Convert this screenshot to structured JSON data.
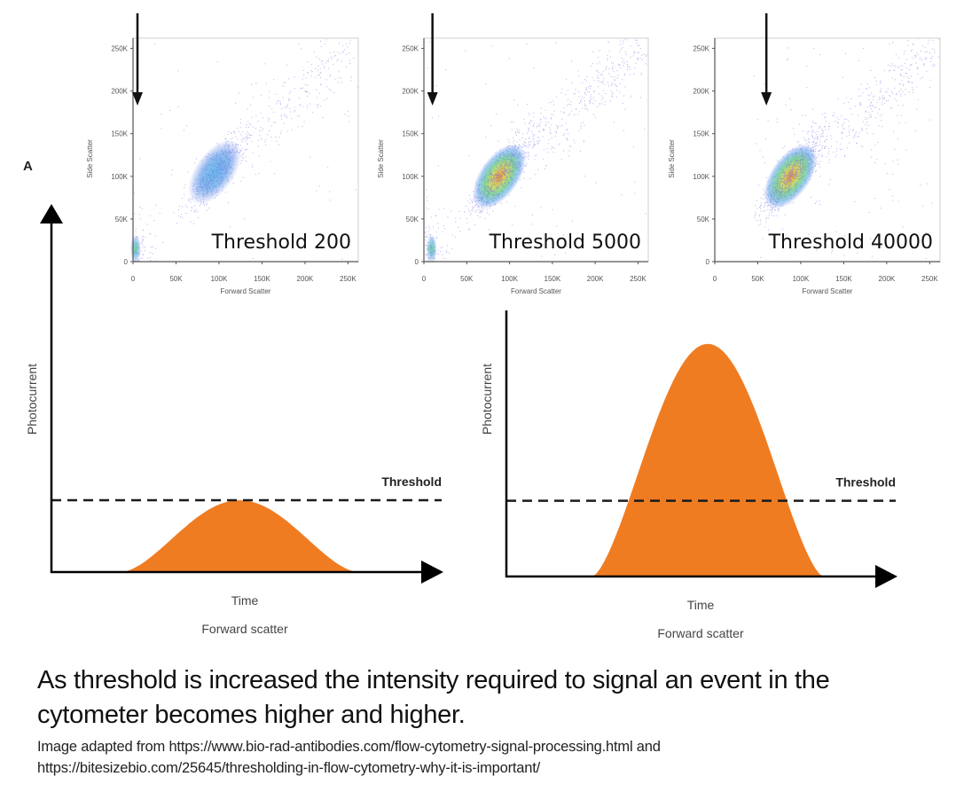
{
  "panel_label": "A",
  "scatter_plots": [
    {
      "id": "t200",
      "label": "Threshold 200",
      "threshold": 200,
      "xlabel": "Forward Scatter",
      "ylabel": "Side Scatter",
      "ticks": [
        "0",
        "50K",
        "100K",
        "150K",
        "200K",
        "250K"
      ],
      "arrow_at_fsc": 0,
      "cluster_fsc": 95000,
      "cluster_ssc": 105000,
      "debris": true,
      "density": "low"
    },
    {
      "id": "t5000",
      "label": "Threshold 5000",
      "threshold": 5000,
      "xlabel": "Forward Scatter",
      "ylabel": "Side Scatter",
      "ticks": [
        "0",
        "50K",
        "100K",
        "150K",
        "200K",
        "250K"
      ],
      "arrow_at_fsc": 10000,
      "cluster_fsc": 88000,
      "cluster_ssc": 100000,
      "debris": true,
      "density": "high"
    },
    {
      "id": "t40000",
      "label": "Threshold 40000",
      "threshold": 40000,
      "xlabel": "Forward Scatter",
      "ylabel": "Side Scatter",
      "ticks": [
        "0",
        "50K",
        "100K",
        "150K",
        "200K",
        "250K"
      ],
      "arrow_at_fsc": 60000,
      "cluster_fsc": 88000,
      "cluster_ssc": 100000,
      "debris": false,
      "density": "high"
    }
  ],
  "pulse_diagrams": [
    {
      "id": "low",
      "ylabel": "Photocurrent",
      "xlabel": "Time",
      "sublabel": "Forward scatter",
      "threshold_label": "Threshold",
      "threshold_level": 0.22,
      "peak_level": 0.22,
      "pulse_start": 0.18,
      "pulse_end": 0.78
    },
    {
      "id": "high",
      "ylabel": "Photocurrent",
      "xlabel": "Time",
      "sublabel": "Forward scatter",
      "threshold_label": "Threshold",
      "threshold_level": 0.28,
      "peak_level": 0.86,
      "pulse_start": 0.22,
      "pulse_end": 0.81
    }
  ],
  "colors": {
    "pulse": "#f07c22",
    "axis": "#000000",
    "dash": "#1a1a1a"
  },
  "caption": {
    "main": "As threshold is increased the intensity required to signal an event in the cytometer becomes higher and higher.",
    "source_line1": "Image adapted from https://www.bio-rad-antibodies.com/flow-cytometry-signal-processing.html and",
    "source_line2": "https://bitesizebio.com/25645/thresholding-in-flow-cytometry-why-it-is-important/"
  }
}
